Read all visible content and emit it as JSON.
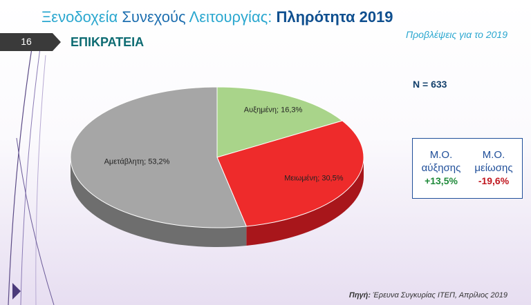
{
  "header": {
    "title_part1": "Ξενοδοχεία",
    "title_part2": "Συνεχούς",
    "title_part3": "Λειτουργίας:",
    "title_emph": "Πληρότητα 2019",
    "subtitle": "Προβλέψεις για το 2019",
    "page_number": "16",
    "section": "ΕΠΙΚΡΑΤΕΙΑ"
  },
  "sample": {
    "n_label": "N = 633"
  },
  "colors": {
    "increased": "#a9d48a",
    "decreased": "#ee2b2b",
    "unchanged": "#a6a6a6"
  },
  "chart_data": {
    "type": "pie",
    "title": "",
    "slices": [
      {
        "label": "Αυξημένη",
        "value": 16.3,
        "display": "Αυξημένη; 16,3%",
        "color": "#a9d48a",
        "side": "#6f9a55"
      },
      {
        "label": "Μειωμένη",
        "value": 30.5,
        "display": "Μειωμένη; 30,5%",
        "color": "#ee2b2b",
        "side": "#a8161b"
      },
      {
        "label": "Αμετάβλητη",
        "value": 53.2,
        "display": "Αμετάβλητη; 53,2%",
        "color": "#a6a6a6",
        "side": "#6e6e6e"
      }
    ]
  },
  "averages": {
    "increase_line1": "Μ.Ο.",
    "increase_line2": "αύξησης",
    "increase_value": "+13,5%",
    "decrease_line1": "Μ.Ο.",
    "decrease_line2": "μείωσης",
    "decrease_value": "-19,6%"
  },
  "footer": {
    "source_label": "Πηγή:",
    "source_text": "Έρευνα Συγκυρίας ΙΤΕΠ, Απρίλιος 2019"
  }
}
